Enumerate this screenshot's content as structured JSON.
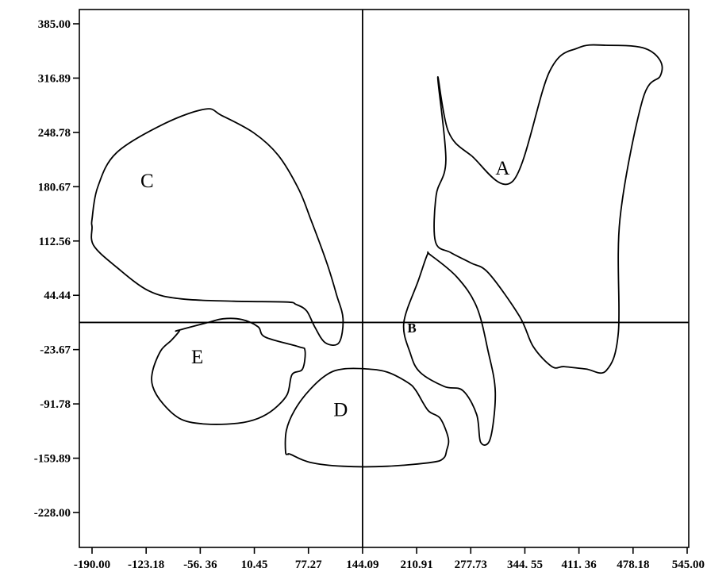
{
  "chart_data": {
    "type": "scatter",
    "title": "",
    "xlabel": "",
    "ylabel": "",
    "xlim": [
      -190.0,
      545.0
    ],
    "ylim": [
      -228.0,
      385.0
    ],
    "x_tick_labels": [
      "-190.00",
      "-123.18",
      "-56. 36",
      "10.45",
      "77.27",
      "144.09",
      "210.91",
      "277.73",
      "344. 55",
      "411. 36",
      "478.18",
      "545.00"
    ],
    "x_tick_values": [
      -190.0,
      -123.18,
      -56.36,
      10.45,
      77.27,
      144.09,
      210.91,
      277.73,
      344.55,
      411.36,
      478.18,
      545.0
    ],
    "y_tick_labels": [
      "385.00",
      "316.89",
      "248.78",
      "180.67",
      "112.56",
      "44.44",
      "-23.67",
      "-91.78",
      "-159.89",
      "-228.00"
    ],
    "y_tick_values": [
      385.0,
      316.89,
      248.78,
      180.67,
      112.56,
      44.44,
      -23.67,
      -91.78,
      -159.89,
      -228.0
    ],
    "reference_lines": {
      "x": 144.09,
      "y": 10.4
    },
    "grid": false,
    "regions": [
      {
        "label": "A",
        "label_pos": [
          317,
          204
        ],
        "outline": [
          [
            237,
            318
          ],
          [
            250,
            250
          ],
          [
            278,
            220
          ],
          [
            330,
            188
          ],
          [
            375,
            325
          ],
          [
            411,
            355
          ],
          [
            447,
            358
          ],
          [
            490,
            355
          ],
          [
            511,
            340
          ],
          [
            512,
            320
          ],
          [
            490,
            290
          ],
          [
            462,
            140
          ],
          [
            460,
            -2
          ],
          [
            445,
            -50
          ],
          [
            420,
            -48
          ],
          [
            393,
            -45
          ],
          [
            378,
            -45
          ],
          [
            355,
            -20
          ],
          [
            338,
            18
          ],
          [
            300,
            72
          ],
          [
            278,
            85
          ],
          [
            253,
            98
          ],
          [
            234,
            112
          ],
          [
            235,
            170
          ],
          [
            247,
            214
          ]
        ]
      },
      {
        "label": "B",
        "label_pos": [
          205,
          6
        ],
        "label_small": true,
        "outline": [
          [
            228,
            95
          ],
          [
            261,
            67
          ],
          [
            285,
            30
          ],
          [
            299,
            -25
          ],
          [
            308,
            -77
          ],
          [
            302,
            -135
          ],
          [
            290,
            -140
          ],
          [
            285,
            -105
          ],
          [
            268,
            -75
          ],
          [
            245,
            -70
          ],
          [
            215,
            -52
          ],
          [
            203,
            -28
          ],
          [
            195,
            10
          ],
          [
            213,
            63
          ],
          [
            224,
            95
          ]
        ]
      },
      {
        "label": "C",
        "label_pos": [
          -122,
          188
        ],
        "outline": [
          [
            -190,
            140
          ],
          [
            -183,
            180
          ],
          [
            -160,
            223
          ],
          [
            -100,
            260
          ],
          [
            -50,
            278
          ],
          [
            -30,
            270
          ],
          [
            10,
            248
          ],
          [
            40,
            220
          ],
          [
            65,
            178
          ],
          [
            80,
            140
          ],
          [
            100,
            85
          ],
          [
            112,
            45
          ],
          [
            120,
            15
          ],
          [
            115,
            -15
          ],
          [
            98,
            -15
          ],
          [
            85,
            5
          ],
          [
            75,
            25
          ],
          [
            62,
            33
          ],
          [
            50,
            36
          ],
          [
            -15,
            37
          ],
          [
            -80,
            40
          ],
          [
            -120,
            50
          ],
          [
            -160,
            80
          ],
          [
            -188,
            107
          ],
          [
            -190,
            130
          ]
        ]
      },
      {
        "label": "E",
        "label_pos": [
          -60,
          -33
        ],
        "outline": [
          [
            -85,
            0
          ],
          [
            -48,
            10
          ],
          [
            -28,
            15
          ],
          [
            -5,
            14
          ],
          [
            15,
            5
          ],
          [
            24,
            -8
          ],
          [
            65,
            -20
          ],
          [
            73,
            -25
          ],
          [
            70,
            -48
          ],
          [
            57,
            -55
          ],
          [
            51,
            -80
          ],
          [
            35,
            -98
          ],
          [
            15,
            -110
          ],
          [
            -10,
            -116
          ],
          [
            -50,
            -117
          ],
          [
            -80,
            -111
          ],
          [
            -102,
            -92
          ],
          [
            -115,
            -70
          ],
          [
            -115,
            -50
          ],
          [
            -105,
            -25
          ],
          [
            -92,
            -12
          ],
          [
            -82,
            0
          ]
        ]
      },
      {
        "label": "D",
        "label_pos": [
          117,
          -99
        ],
        "outline": [
          [
            55,
            -155
          ],
          [
            79,
            -165
          ],
          [
            120,
            -170
          ],
          [
            175,
            -170
          ],
          [
            230,
            -165
          ],
          [
            244,
            -160
          ],
          [
            248,
            -150
          ],
          [
            250,
            -135
          ],
          [
            240,
            -110
          ],
          [
            225,
            -100
          ],
          [
            210,
            -75
          ],
          [
            200,
            -65
          ],
          [
            175,
            -52
          ],
          [
            150,
            -48
          ],
          [
            120,
            -48
          ],
          [
            100,
            -55
          ],
          [
            78,
            -75
          ],
          [
            60,
            -100
          ],
          [
            50,
            -125
          ],
          [
            49,
            -152
          ],
          [
            52,
            -155
          ]
        ]
      }
    ]
  }
}
